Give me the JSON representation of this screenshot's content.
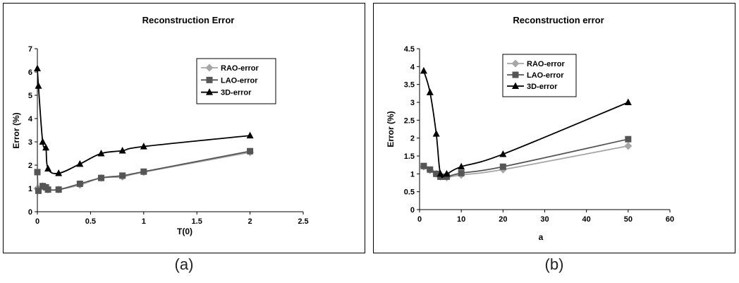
{
  "captions": [
    "(a)",
    "(b)"
  ],
  "chart_data": [
    {
      "type": "line",
      "title": "Reconstruction Error",
      "xlabel": "T(0)",
      "ylabel": "Error (%)",
      "xlim": [
        0,
        2.5
      ],
      "ylim": [
        0,
        7
      ],
      "xticks": [
        0,
        0.5,
        1,
        1.5,
        2,
        2.5
      ],
      "xtick_labels": [
        "0",
        "0.5",
        "1",
        "1.5",
        "2",
        "2.5"
      ],
      "yticks": [
        0,
        1,
        2,
        3,
        4,
        5,
        6,
        7
      ],
      "ytick_labels": [
        "0",
        "1",
        "2",
        "3",
        "4",
        "5",
        "6",
        "7"
      ],
      "grid": false,
      "legend_position": "top-right",
      "series": [
        {
          "name": "RAO-error",
          "color": "#a6a6a6",
          "marker": "diamond",
          "x": [
            0,
            0.01,
            0.05,
            0.08,
            0.1,
            0.2,
            0.4,
            0.6,
            0.8,
            1.0,
            2.0
          ],
          "y": [
            1.0,
            0.95,
            1.1,
            1.05,
            0.95,
            0.95,
            1.15,
            1.45,
            1.5,
            1.7,
            2.55
          ]
        },
        {
          "name": "LAO-error",
          "color": "#555555",
          "marker": "square",
          "x": [
            0,
            0.01,
            0.05,
            0.08,
            0.1,
            0.2,
            0.4,
            0.6,
            0.8,
            1.0,
            2.0
          ],
          "y": [
            1.7,
            0.9,
            1.1,
            1.05,
            0.95,
            0.95,
            1.2,
            1.45,
            1.55,
            1.72,
            2.6
          ]
        },
        {
          "name": "3D-error",
          "color": "#000000",
          "marker": "triangle",
          "x": [
            0,
            0.01,
            0.05,
            0.08,
            0.1,
            0.2,
            0.4,
            0.6,
            0.8,
            1.0,
            2.0
          ],
          "y": [
            6.15,
            5.4,
            3.0,
            2.75,
            1.85,
            1.65,
            2.05,
            2.5,
            2.62,
            2.8,
            3.27
          ]
        }
      ]
    },
    {
      "type": "line",
      "title": "Reconstruction error",
      "xlabel": "a",
      "ylabel": "Error (%)",
      "xlim": [
        0,
        60
      ],
      "ylim": [
        0,
        4.5
      ],
      "xticks": [
        0,
        10,
        20,
        30,
        40,
        50,
        60
      ],
      "xtick_labels": [
        "0",
        "10",
        "20",
        "30",
        "40",
        "50",
        "60"
      ],
      "yticks": [
        0,
        0.5,
        1,
        1.5,
        2,
        2.5,
        3,
        3.5,
        4,
        4.5
      ],
      "ytick_labels": [
        "0",
        "0.5",
        "1",
        "1.5",
        "2",
        "2.5",
        "3",
        "3.5",
        "4",
        "4.5"
      ],
      "grid": false,
      "legend_position": "top-left",
      "series": [
        {
          "name": "RAO-error",
          "color": "#a6a6a6",
          "marker": "diamond",
          "x": [
            1,
            2.5,
            4,
            5,
            6.5,
            10,
            20,
            50
          ],
          "y": [
            1.2,
            1.1,
            1.0,
            0.92,
            0.9,
            0.97,
            1.12,
            1.78
          ]
        },
        {
          "name": "LAO-error",
          "color": "#555555",
          "marker": "square",
          "x": [
            1,
            2.5,
            4,
            5,
            6.5,
            10,
            20,
            50
          ],
          "y": [
            1.22,
            1.12,
            1.0,
            0.92,
            0.92,
            1.02,
            1.2,
            1.97
          ]
        },
        {
          "name": "3D-error",
          "color": "#000000",
          "marker": "triangle",
          "x": [
            1,
            2.5,
            4,
            5,
            6.5,
            10,
            20,
            50
          ],
          "y": [
            3.88,
            3.28,
            2.12,
            1.0,
            1.0,
            1.2,
            1.55,
            3.0
          ]
        }
      ]
    }
  ]
}
